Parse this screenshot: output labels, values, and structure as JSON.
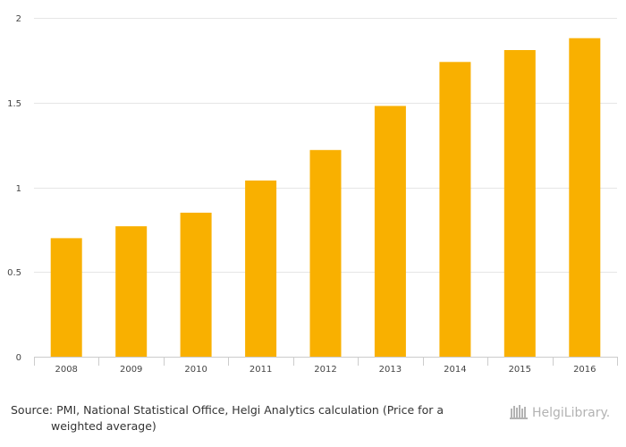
{
  "chart_data": {
    "type": "bar",
    "categories": [
      "2008",
      "2009",
      "2010",
      "2011",
      "2012",
      "2013",
      "2014",
      "2015",
      "2016"
    ],
    "values": [
      0.7,
      0.77,
      0.85,
      1.04,
      1.22,
      1.48,
      1.74,
      1.81,
      1.88
    ],
    "ylim": [
      0,
      2
    ],
    "yticks": [
      0,
      0.5,
      1,
      1.5,
      2
    ],
    "ytick_labels": [
      "0",
      "0.5",
      "1",
      "1.5",
      "2"
    ],
    "grid": true,
    "bar_color": "#F9B000"
  },
  "footer": {
    "source_line1": "Source: PMI, National Statistical Office, Helgi Analytics calculation (Price for a",
    "source_line2": "weighted average)",
    "logo_text": "HelgiLibrary."
  }
}
